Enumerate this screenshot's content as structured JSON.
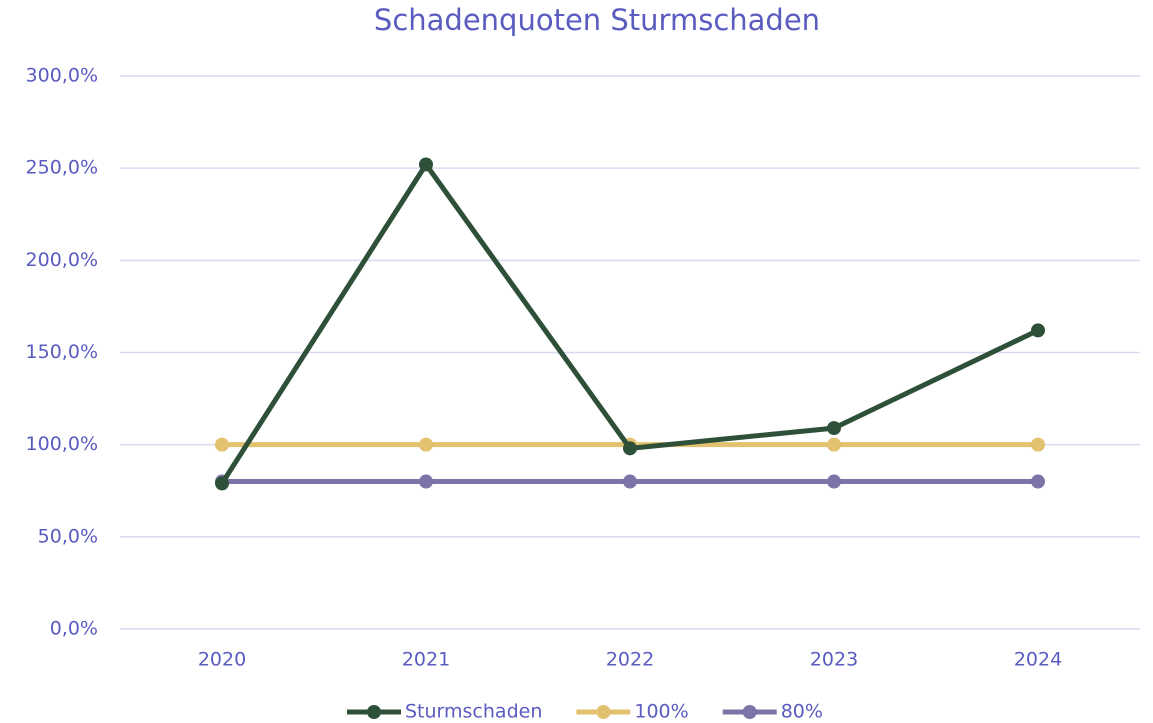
{
  "chart_data": {
    "type": "line",
    "title": "Schadenquoten Sturmschaden",
    "categories": [
      "2020",
      "2021",
      "2022",
      "2023",
      "2024"
    ],
    "series": [
      {
        "name": "Sturmschaden",
        "color": "#2e5039",
        "values": [
          79,
          252,
          98,
          109,
          162
        ]
      },
      {
        "name": "100%",
        "color": "#e2c26f",
        "values": [
          100,
          100,
          100,
          100,
          100
        ]
      },
      {
        "name": "80%",
        "color": "#7b74a6",
        "values": [
          80,
          80,
          80,
          80,
          80
        ]
      }
    ],
    "ylim": [
      0,
      300
    ],
    "yticks": [
      {
        "value": 0,
        "label": "0,0%"
      },
      {
        "value": 50,
        "label": "50,0%"
      },
      {
        "value": 100,
        "label": "100,0%"
      },
      {
        "value": 150,
        "label": "150,0%"
      },
      {
        "value": 200,
        "label": "200,0%"
      },
      {
        "value": 250,
        "label": "250,0%"
      },
      {
        "value": 300,
        "label": "300,0%"
      }
    ],
    "grid": true,
    "legend": "bottom"
  }
}
